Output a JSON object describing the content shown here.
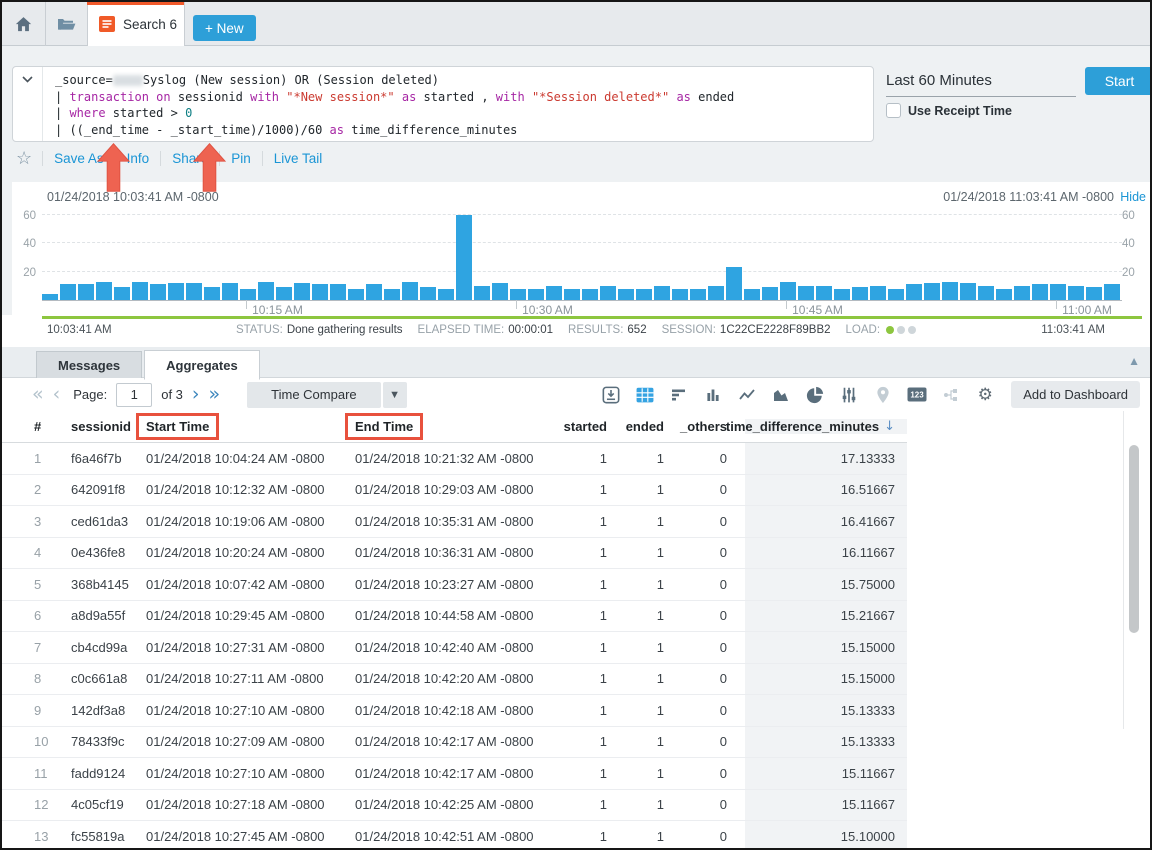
{
  "topbar": {
    "tab": {
      "label": "Search 6"
    },
    "new_button": "+ New"
  },
  "query": {
    "lines": [
      [
        {
          "t": "_source="
        },
        {
          "redacted": true
        },
        {
          "t": "Syslog (New session) OR (Session deleted)"
        }
      ],
      [
        {
          "t": "| "
        },
        {
          "t": "transaction",
          "k": "kw"
        },
        {
          "t": " "
        },
        {
          "t": "on",
          "k": "kw"
        },
        {
          "t": " sessionid "
        },
        {
          "t": "with",
          "k": "kw"
        },
        {
          "t": " "
        },
        {
          "t": "\"*New session*\"",
          "k": "str"
        },
        {
          "t": " "
        },
        {
          "t": "as",
          "k": "kw"
        },
        {
          "t": " started , "
        },
        {
          "t": "with",
          "k": "kw"
        },
        {
          "t": " "
        },
        {
          "t": "\"*Session deleted*\"",
          "k": "str"
        },
        {
          "t": " "
        },
        {
          "t": "as",
          "k": "kw"
        },
        {
          "t": " ended"
        }
      ],
      [
        {
          "t": "| "
        },
        {
          "t": "where",
          "k": "kw"
        },
        {
          "t": " started > "
        },
        {
          "t": "0",
          "k": "num"
        }
      ],
      [
        {
          "t": "| ((_end_time - _start_time)/1000)/60 "
        },
        {
          "t": "as",
          "k": "kw"
        },
        {
          "t": " time_difference_minutes"
        }
      ]
    ]
  },
  "time_panel": {
    "range": "Last 60 Minutes",
    "use_receipt": "Use Receipt Time",
    "start_button": "Start"
  },
  "actions": {
    "items": [
      "Save As",
      "Info",
      "Share",
      "Pin",
      "Live Tail"
    ]
  },
  "chart_header": {
    "start": "01/24/2018 10:03:41 AM -0800",
    "end": "01/24/2018 11:03:41 AM -0800",
    "hide_link": "Hide"
  },
  "chart_data": {
    "type": "bar",
    "title": "message count histogram",
    "x_start": "10:03:41 AM",
    "x_end": "11:03:41 AM",
    "bucket_minutes": 1,
    "values": [
      4,
      11,
      11,
      13,
      9,
      13,
      11,
      12,
      12,
      9,
      12,
      8,
      13,
      9,
      12,
      11,
      11,
      8,
      11,
      8,
      13,
      9,
      8,
      60,
      10,
      12,
      8,
      8,
      10,
      8,
      8,
      10,
      8,
      8,
      10,
      8,
      8,
      10,
      23,
      8,
      9,
      13,
      10,
      10,
      8,
      9,
      10,
      8,
      11,
      12,
      13,
      12,
      10,
      8,
      10,
      11,
      11,
      10,
      9,
      11
    ],
    "yticks": [
      20,
      40,
      60
    ],
    "ylim": [
      0,
      63
    ],
    "xlabels": [
      {
        "label": "10:15 AM",
        "pct": 18.9
      },
      {
        "label": "10:30 AM",
        "pct": 43.9
      },
      {
        "label": "10:45 AM",
        "pct": 68.9
      },
      {
        "label": "11:00 AM",
        "pct": 93.9
      }
    ],
    "bar_color": "#2fa4e1",
    "grid": "dashed"
  },
  "status_bar": {
    "left_time": "10:03:41 AM",
    "right_time": "11:03:41 AM",
    "items": [
      {
        "label": "STATUS:",
        "value": "Done gathering results"
      },
      {
        "label": "ELAPSED TIME:",
        "value": "00:00:01"
      },
      {
        "label": "RESULTS:",
        "value": "652"
      },
      {
        "label": "SESSION:",
        "value": "1C22CE2228F89BB2"
      }
    ],
    "load_label": "LOAD:",
    "load_dots": {
      "active": 1,
      "total": 3,
      "active_color": "#8dc63f",
      "inactive_color": "#cfd6da"
    }
  },
  "results": {
    "tabs": [
      {
        "label": "Messages",
        "active": false
      },
      {
        "label": "Aggregates",
        "active": true
      }
    ],
    "pagination": {
      "page_label": "Page:",
      "page_value": "1",
      "of_label": "of 3"
    },
    "time_compare_button": "Time Compare",
    "add_to_dashboard_button": "Add to Dashboard"
  },
  "table": {
    "columns": [
      {
        "key": "num",
        "label": "#",
        "align": "left"
      },
      {
        "key": "sessionid",
        "label": "sessionid",
        "align": "left"
      },
      {
        "key": "start",
        "label": "Start Time",
        "align": "left",
        "boxed": true
      },
      {
        "key": "end",
        "label": "End Time",
        "align": "left",
        "boxed": true
      },
      {
        "key": "started",
        "label": "started",
        "align": "right"
      },
      {
        "key": "ended",
        "label": "ended",
        "align": "right"
      },
      {
        "key": "others",
        "label": "_others",
        "align": "right"
      },
      {
        "key": "tdm",
        "label": "time_difference_minutes",
        "align": "right",
        "sorted": "desc",
        "shaded": true
      }
    ],
    "rows": [
      [
        "1",
        "f6a46f7b",
        "01/24/2018 10:04:24 AM -0800",
        "01/24/2018 10:21:32 AM -0800",
        "1",
        "1",
        "0",
        "17.13333"
      ],
      [
        "2",
        "642091f8",
        "01/24/2018 10:12:32 AM -0800",
        "01/24/2018 10:29:03 AM -0800",
        "1",
        "1",
        "0",
        "16.51667"
      ],
      [
        "3",
        "ced61da3",
        "01/24/2018 10:19:06 AM -0800",
        "01/24/2018 10:35:31 AM -0800",
        "1",
        "1",
        "0",
        "16.41667"
      ],
      [
        "4",
        "0e436fe8",
        "01/24/2018 10:20:24 AM -0800",
        "01/24/2018 10:36:31 AM -0800",
        "1",
        "1",
        "0",
        "16.11667"
      ],
      [
        "5",
        "368b4145",
        "01/24/2018 10:07:42 AM -0800",
        "01/24/2018 10:23:27 AM -0800",
        "1",
        "1",
        "0",
        "15.75000"
      ],
      [
        "6",
        "a8d9a55f",
        "01/24/2018 10:29:45 AM -0800",
        "01/24/2018 10:44:58 AM -0800",
        "1",
        "1",
        "0",
        "15.21667"
      ],
      [
        "7",
        "cb4cd99a",
        "01/24/2018 10:27:31 AM -0800",
        "01/24/2018 10:42:40 AM -0800",
        "1",
        "1",
        "0",
        "15.15000"
      ],
      [
        "8",
        "c0c661a8",
        "01/24/2018 10:27:11 AM -0800",
        "01/24/2018 10:42:20 AM -0800",
        "1",
        "1",
        "0",
        "15.15000"
      ],
      [
        "9",
        "142df3a8",
        "01/24/2018 10:27:10 AM -0800",
        "01/24/2018 10:42:18 AM -0800",
        "1",
        "1",
        "0",
        "15.13333"
      ],
      [
        "10",
        "78433f9c",
        "01/24/2018 10:27:09 AM -0800",
        "01/24/2018 10:42:17 AM -0800",
        "1",
        "1",
        "0",
        "15.13333"
      ],
      [
        "11",
        "fadd9124",
        "01/24/2018 10:27:10 AM -0800",
        "01/24/2018 10:42:17 AM -0800",
        "1",
        "1",
        "0",
        "15.11667"
      ],
      [
        "12",
        "4c05cf19",
        "01/24/2018 10:27:18 AM -0800",
        "01/24/2018 10:42:25 AM -0800",
        "1",
        "1",
        "0",
        "15.11667"
      ],
      [
        "13",
        "fc55819a",
        "01/24/2018 10:27:45 AM -0800",
        "01/24/2018 10:42:51 AM -0800",
        "1",
        "1",
        "0",
        "15.10000"
      ]
    ]
  },
  "colors": {
    "accent_blue": "#2d9fd8",
    "tab_orange": "#f1592a",
    "link_blue": "#1a95d5",
    "bar_blue": "#2fa4e1",
    "progress_green": "#8dc63f",
    "annotation_red": "#e8513d",
    "keyword_purple": "#a626a4",
    "string_red": "#cb3a30",
    "number_teal": "#0d7e83"
  }
}
